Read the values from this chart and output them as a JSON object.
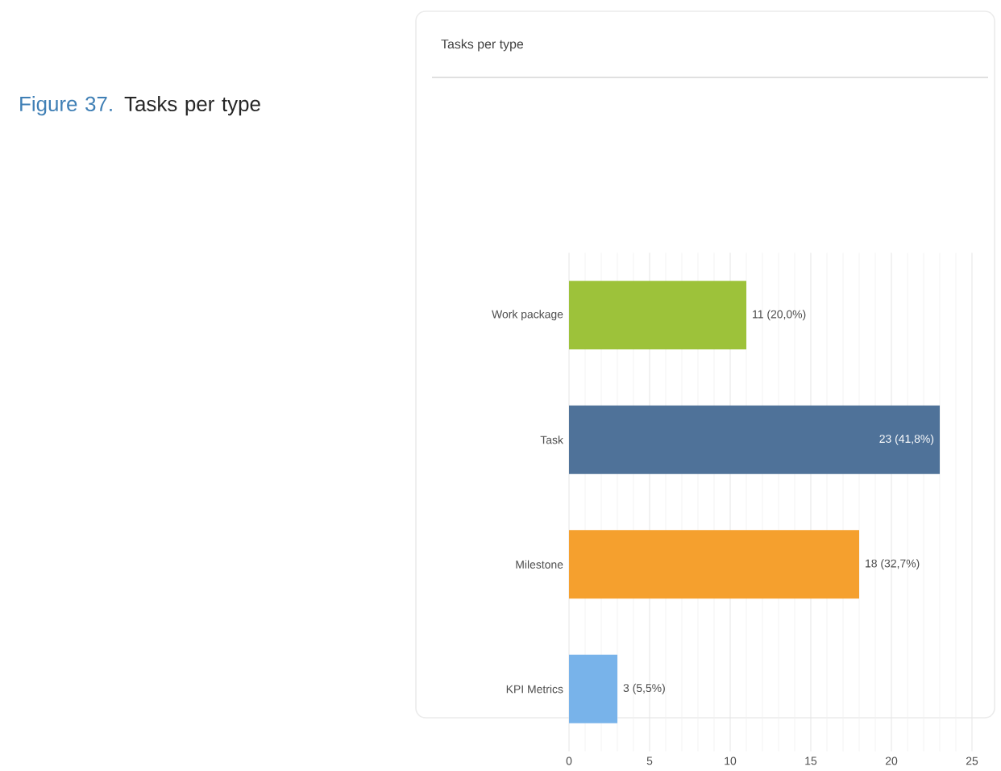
{
  "chart_data": {
    "type": "bar",
    "orientation": "horizontal",
    "title": "Tasks per type",
    "categories": [
      "Work package",
      "Task",
      "Milestone",
      "KPI Metrics"
    ],
    "values": [
      11,
      23,
      18,
      3
    ],
    "colors": [
      "#9dc23a",
      "#4f7299",
      "#f5a02e",
      "#78b3ea"
    ],
    "value_labels": [
      "11 (20,0%)",
      "23 (41,8%)",
      "18 (32,7%)",
      "3 (5,5%)"
    ],
    "xlim": [
      0,
      25
    ],
    "xticks": [
      0,
      5,
      10,
      15,
      20,
      25
    ],
    "grid": "x",
    "annotations": [
      "Figure 37.",
      "Tasks per type"
    ]
  }
}
